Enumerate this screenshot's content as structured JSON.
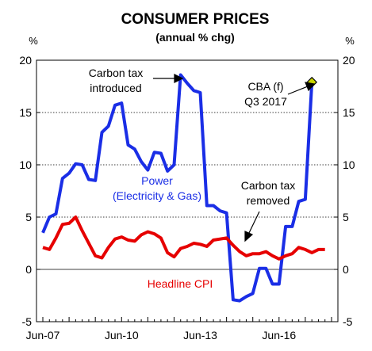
{
  "chart_data": {
    "type": "line",
    "title": "CONSUMER PRICES",
    "subtitle": "(annual % chg)",
    "y_unit_left": "%",
    "y_unit_right": "%",
    "ylim": [
      -5,
      20
    ],
    "yticks": [
      -5,
      0,
      5,
      10,
      15,
      20
    ],
    "ytick_labels": [
      "-5",
      "0",
      "5",
      "10",
      "15",
      "20"
    ],
    "xticks": [
      "Jun-07",
      "Jun-10",
      "Jun-13",
      "Jun-16"
    ],
    "xlim_quarters": [
      0,
      44
    ],
    "grid": "horizontal dotted",
    "series": [
      {
        "name": "Power (Electricity & Gas)",
        "color": "#1a2ee6",
        "x": [
          0,
          1,
          2,
          3,
          4,
          5,
          6,
          7,
          8,
          9,
          10,
          11,
          12,
          13,
          14,
          15,
          16,
          17,
          18,
          19,
          20,
          21,
          22,
          23,
          24,
          25,
          26,
          27,
          28,
          29,
          30,
          31,
          32,
          33,
          34,
          35,
          36,
          37,
          38,
          39,
          40
        ],
        "values": [
          3.5,
          5.0,
          5.3,
          8.7,
          9.2,
          10.1,
          10.0,
          8.6,
          8.5,
          13.1,
          13.7,
          15.7,
          15.9,
          11.9,
          11.5,
          10.3,
          9.5,
          11.2,
          11.1,
          9.4,
          10.0,
          18.6,
          17.8,
          17.1,
          16.9,
          6.1,
          6.1,
          5.6,
          5.4,
          -2.9,
          -3.0,
          -2.6,
          -2.3,
          0.1,
          0.1,
          -1.4,
          -1.4,
          4.1,
          4.1,
          6.5,
          6.7
        ]
      },
      {
        "name": "Headline CPI",
        "color": "#e60000",
        "x": [
          0,
          1,
          2,
          3,
          4,
          5,
          6,
          7,
          8,
          9,
          10,
          11,
          12,
          13,
          14,
          15,
          16,
          17,
          18,
          19,
          20,
          21,
          22,
          23,
          24,
          25,
          26,
          27,
          28,
          29,
          30,
          31,
          32,
          33,
          34,
          35,
          36,
          37,
          38,
          39,
          40,
          41,
          42,
          43
        ],
        "values": [
          2.1,
          1.9,
          3.0,
          4.3,
          4.4,
          5.0,
          3.7,
          2.5,
          1.3,
          1.1,
          2.1,
          2.9,
          3.1,
          2.8,
          2.7,
          3.3,
          3.6,
          3.4,
          3.0,
          1.6,
          1.2,
          2.0,
          2.2,
          2.5,
          2.4,
          2.2,
          2.8,
          2.9,
          3.0,
          2.3,
          1.7,
          1.3,
          1.5,
          1.5,
          1.7,
          1.3,
          1.0,
          1.3,
          1.5,
          2.1,
          1.9,
          1.6,
          1.9,
          1.9
        ]
      }
    ],
    "forecast_point": {
      "x": 41,
      "y": 17.9,
      "label_line1": "CBA (f)",
      "label_line2": "Q3 2017"
    },
    "annotations": {
      "carbon_intro_line1": "Carbon tax",
      "carbon_intro_line2": "introduced",
      "carbon_removed_line1": "Carbon tax",
      "carbon_removed_line2": "removed",
      "power_line1": "Power",
      "power_line2": "(Electricity & Gas)",
      "cpi_label": "Headline CPI"
    }
  }
}
